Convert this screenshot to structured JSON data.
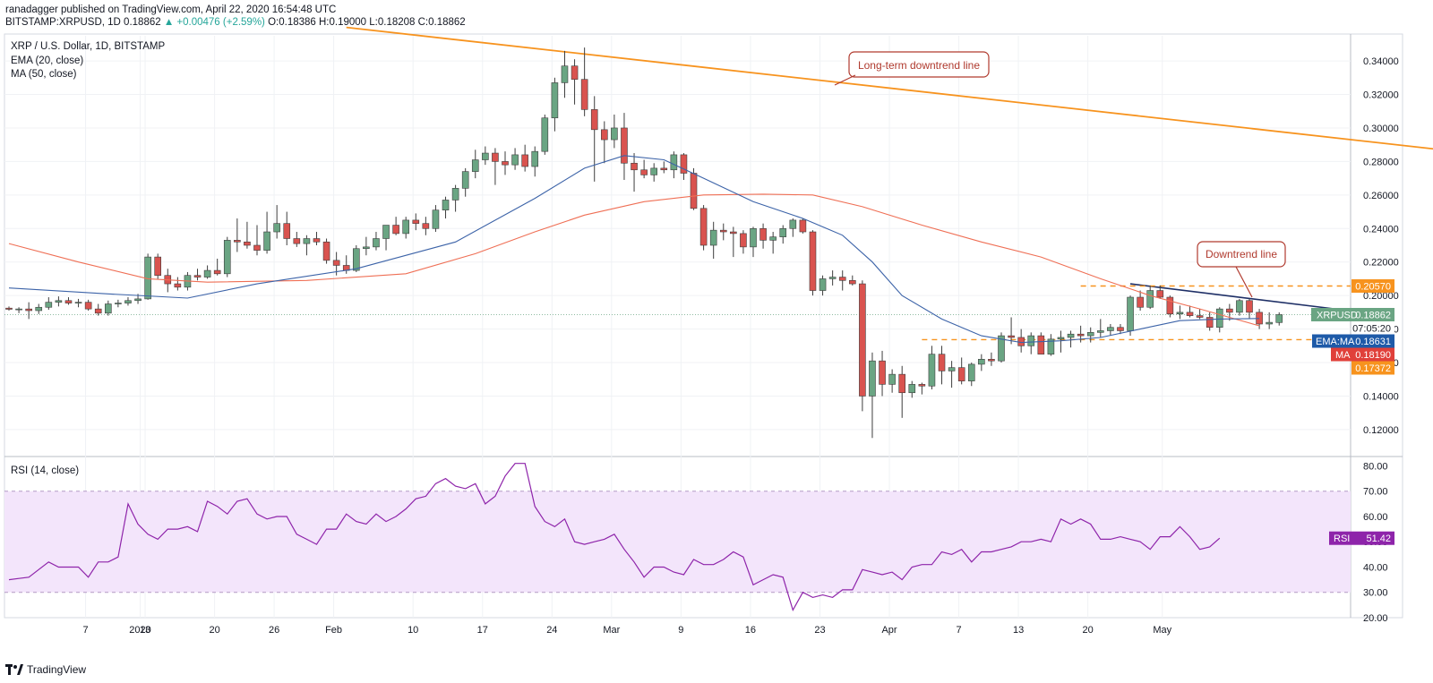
{
  "header": {
    "publish_line": "ranadagger published on TradingView.com, April 22, 2020 16:54:48 UTC",
    "symbol_line_prefix": "BITSTAMP:XRPUSD, 1D 0.18862",
    "symbol_line_change": "▲ +0.00476 (+2.59%)",
    "symbol_line_ohlc": "O:0.18386 H:0.19000 L:0.18208 C:0.18862"
  },
  "legend": {
    "title": "XRP / U.S. Dollar, 1D, BITSTAMP",
    "ema": "EMA (20, close)",
    "ma": "MA (50, close)"
  },
  "rsi_panel": {
    "label": "RSI (14, close)"
  },
  "footer": {
    "brand": "TradingView"
  },
  "colors": {
    "up": "#6aa583",
    "down": "#d9534f",
    "ema": "#3c63a8",
    "ma": "#ef6f55",
    "trend_long": "#f7931e",
    "trend_short": "#1e2f66",
    "rsi": "#8e24aa",
    "rsi_band": "#f3e5fb",
    "annotation": "#b03a2e"
  },
  "chart_data": [
    {
      "type": "candlestick",
      "title": "XRP / U.S. Dollar, 1D, BITSTAMP",
      "ylim": [
        0.105,
        0.355
      ],
      "y_ticks": [
        "0.12000",
        "0.14000",
        "0.16000",
        "0.18000",
        "0.20000",
        "0.22000",
        "0.24000",
        "0.26000",
        "0.28000",
        "0.30000",
        "0.32000",
        "0.34000"
      ],
      "x_ticks": [
        "2020",
        "7",
        "13",
        "20",
        "26",
        "Feb",
        "10",
        "17",
        "24",
        "Mar",
        "9",
        "16",
        "23",
        "Apr",
        "7",
        "13",
        "20",
        "May"
      ],
      "price_labels": {
        "symbol": "XRPUSD",
        "last": "0.18862",
        "countdown": "07:05:20",
        "ema_label": "EMA:MA",
        "ema_value": "0.18631",
        "ma_label": "MA",
        "ma_value": "0.18190",
        "resistance": "0.20570",
        "support": "0.17372"
      },
      "annotations": [
        "Long-term downtrend line",
        "Downtrend line"
      ],
      "candles": [
        [
          0.1925,
          0.1935,
          0.191,
          0.1918
        ],
        [
          0.1918,
          0.193,
          0.1895,
          0.192
        ],
        [
          0.192,
          0.196,
          0.186,
          0.191
        ],
        [
          0.191,
          0.195,
          0.189,
          0.193
        ],
        [
          0.193,
          0.199,
          0.1915,
          0.196
        ],
        [
          0.196,
          0.1995,
          0.1935,
          0.197
        ],
        [
          0.197,
          0.199,
          0.1945,
          0.1955
        ],
        [
          0.1955,
          0.198,
          0.193,
          0.196
        ],
        [
          0.196,
          0.1975,
          0.191,
          0.192
        ],
        [
          0.192,
          0.195,
          0.188,
          0.1895
        ],
        [
          0.1895,
          0.197,
          0.188,
          0.195
        ],
        [
          0.195,
          0.1975,
          0.193,
          0.1955
        ],
        [
          0.1955,
          0.199,
          0.194,
          0.197
        ],
        [
          0.197,
          0.201,
          0.195,
          0.198
        ],
        [
          0.198,
          0.225,
          0.1975,
          0.223
        ],
        [
          0.223,
          0.225,
          0.21,
          0.212
        ],
        [
          0.212,
          0.216,
          0.202,
          0.207
        ],
        [
          0.207,
          0.211,
          0.203,
          0.205
        ],
        [
          0.205,
          0.214,
          0.203,
          0.212
        ],
        [
          0.212,
          0.216,
          0.209,
          0.211
        ],
        [
          0.211,
          0.218,
          0.21,
          0.215
        ],
        [
          0.215,
          0.222,
          0.212,
          0.213
        ],
        [
          0.213,
          0.235,
          0.211,
          0.233
        ],
        [
          0.233,
          0.246,
          0.226,
          0.232
        ],
        [
          0.232,
          0.244,
          0.228,
          0.23
        ],
        [
          0.23,
          0.242,
          0.224,
          0.227
        ],
        [
          0.227,
          0.25,
          0.225,
          0.238
        ],
        [
          0.238,
          0.254,
          0.234,
          0.243
        ],
        [
          0.243,
          0.25,
          0.23,
          0.234
        ],
        [
          0.234,
          0.238,
          0.229,
          0.231
        ],
        [
          0.231,
          0.236,
          0.224,
          0.234
        ],
        [
          0.234,
          0.238,
          0.23,
          0.232
        ],
        [
          0.232,
          0.234,
          0.219,
          0.221
        ],
        [
          0.221,
          0.226,
          0.212,
          0.218
        ],
        [
          0.218,
          0.224,
          0.213,
          0.215
        ],
        [
          0.215,
          0.23,
          0.214,
          0.228
        ],
        [
          0.228,
          0.235,
          0.224,
          0.229
        ],
        [
          0.229,
          0.238,
          0.227,
          0.234
        ],
        [
          0.234,
          0.242,
          0.227,
          0.242
        ],
        [
          0.242,
          0.247,
          0.236,
          0.237
        ],
        [
          0.237,
          0.247,
          0.234,
          0.245
        ],
        [
          0.245,
          0.249,
          0.239,
          0.243
        ],
        [
          0.243,
          0.247,
          0.236,
          0.24
        ],
        [
          0.24,
          0.254,
          0.238,
          0.251
        ],
        [
          0.251,
          0.259,
          0.246,
          0.257
        ],
        [
          0.257,
          0.266,
          0.25,
          0.264
        ],
        [
          0.264,
          0.276,
          0.259,
          0.274
        ],
        [
          0.274,
          0.287,
          0.27,
          0.281
        ],
        [
          0.281,
          0.289,
          0.278,
          0.285
        ],
        [
          0.285,
          0.288,
          0.266,
          0.28
        ],
        [
          0.28,
          0.286,
          0.272,
          0.278
        ],
        [
          0.278,
          0.288,
          0.275,
          0.284
        ],
        [
          0.284,
          0.29,
          0.274,
          0.277
        ],
        [
          0.277,
          0.289,
          0.271,
          0.286
        ],
        [
          0.286,
          0.308,
          0.284,
          0.306
        ],
        [
          0.306,
          0.33,
          0.298,
          0.327
        ],
        [
          0.327,
          0.346,
          0.318,
          0.337
        ],
        [
          0.337,
          0.341,
          0.314,
          0.329
        ],
        [
          0.329,
          0.348,
          0.307,
          0.311
        ],
        [
          0.311,
          0.319,
          0.268,
          0.299
        ],
        [
          0.299,
          0.304,
          0.279,
          0.293
        ],
        [
          0.293,
          0.308,
          0.288,
          0.3
        ],
        [
          0.3,
          0.309,
          0.269,
          0.279
        ],
        [
          0.279,
          0.285,
          0.262,
          0.275
        ],
        [
          0.275,
          0.281,
          0.27,
          0.272
        ],
        [
          0.272,
          0.279,
          0.268,
          0.276
        ],
        [
          0.276,
          0.28,
          0.273,
          0.275
        ],
        [
          0.275,
          0.286,
          0.27,
          0.284
        ],
        [
          0.284,
          0.285,
          0.269,
          0.273
        ],
        [
          0.273,
          0.276,
          0.251,
          0.252
        ],
        [
          0.252,
          0.254,
          0.227,
          0.23
        ],
        [
          0.23,
          0.244,
          0.222,
          0.239
        ],
        [
          0.239,
          0.243,
          0.233,
          0.238
        ],
        [
          0.238,
          0.241,
          0.223,
          0.237
        ],
        [
          0.237,
          0.239,
          0.225,
          0.229
        ],
        [
          0.229,
          0.241,
          0.223,
          0.24
        ],
        [
          0.24,
          0.243,
          0.228,
          0.233
        ],
        [
          0.233,
          0.238,
          0.225,
          0.235
        ],
        [
          0.235,
          0.242,
          0.231,
          0.24
        ],
        [
          0.24,
          0.246,
          0.235,
          0.245
        ],
        [
          0.245,
          0.246,
          0.237,
          0.238
        ],
        [
          0.238,
          0.239,
          0.2,
          0.203
        ],
        [
          0.203,
          0.212,
          0.2,
          0.21
        ],
        [
          0.21,
          0.215,
          0.206,
          0.211
        ],
        [
          0.211,
          0.215,
          0.203,
          0.209
        ],
        [
          0.209,
          0.212,
          0.206,
          0.207
        ],
        [
          0.207,
          0.209,
          0.131,
          0.14
        ],
        [
          0.14,
          0.166,
          0.115,
          0.161
        ],
        [
          0.161,
          0.167,
          0.14,
          0.147
        ],
        [
          0.147,
          0.156,
          0.142,
          0.153
        ],
        [
          0.153,
          0.158,
          0.127,
          0.142
        ],
        [
          0.142,
          0.149,
          0.139,
          0.147
        ],
        [
          0.147,
          0.148,
          0.141,
          0.146
        ],
        [
          0.146,
          0.17,
          0.144,
          0.165
        ],
        [
          0.165,
          0.17,
          0.147,
          0.155
        ],
        [
          0.155,
          0.161,
          0.145,
          0.157
        ],
        [
          0.157,
          0.163,
          0.147,
          0.149
        ],
        [
          0.149,
          0.16,
          0.146,
          0.159
        ],
        [
          0.159,
          0.165,
          0.155,
          0.162
        ],
        [
          0.162,
          0.166,
          0.158,
          0.161
        ],
        [
          0.161,
          0.178,
          0.16,
          0.176
        ],
        [
          0.176,
          0.187,
          0.171,
          0.175
        ],
        [
          0.175,
          0.18,
          0.166,
          0.17
        ],
        [
          0.17,
          0.178,
          0.165,
          0.176
        ],
        [
          0.176,
          0.178,
          0.165,
          0.165
        ],
        [
          0.165,
          0.177,
          0.164,
          0.174
        ],
        [
          0.174,
          0.179,
          0.166,
          0.175
        ],
        [
          0.175,
          0.179,
          0.169,
          0.177
        ],
        [
          0.177,
          0.182,
          0.172,
          0.176
        ],
        [
          0.176,
          0.181,
          0.172,
          0.178
        ],
        [
          0.178,
          0.186,
          0.175,
          0.179
        ],
        [
          0.179,
          0.183,
          0.176,
          0.181
        ],
        [
          0.181,
          0.183,
          0.177,
          0.179
        ],
        [
          0.179,
          0.2,
          0.176,
          0.199
        ],
        [
          0.199,
          0.203,
          0.191,
          0.193
        ],
        [
          0.193,
          0.206,
          0.192,
          0.203
        ],
        [
          0.203,
          0.206,
          0.198,
          0.199
        ],
        [
          0.199,
          0.2,
          0.187,
          0.189
        ],
        [
          0.189,
          0.194,
          0.186,
          0.19
        ],
        [
          0.19,
          0.194,
          0.187,
          0.188
        ],
        [
          0.188,
          0.192,
          0.186,
          0.187
        ],
        [
          0.187,
          0.19,
          0.179,
          0.181
        ],
        [
          0.181,
          0.193,
          0.178,
          0.192
        ],
        [
          0.192,
          0.195,
          0.185,
          0.19
        ],
        [
          0.19,
          0.198,
          0.188,
          0.197
        ],
        [
          0.197,
          0.198,
          0.186,
          0.19
        ],
        [
          0.19,
          0.192,
          0.18,
          0.183
        ],
        [
          0.183,
          0.19,
          0.18,
          0.184
        ],
        [
          0.1839,
          0.19,
          0.1821,
          0.1886
        ]
      ],
      "ema20": [
        [
          0,
          0.2045
        ],
        [
          10,
          0.201
        ],
        [
          18,
          0.1985
        ],
        [
          25,
          0.207
        ],
        [
          35,
          0.216
        ],
        [
          45,
          0.232
        ],
        [
          53,
          0.258
        ],
        [
          58,
          0.276
        ],
        [
          62,
          0.2835
        ],
        [
          66,
          0.281
        ],
        [
          70,
          0.27
        ],
        [
          75,
          0.256
        ],
        [
          80,
          0.246
        ],
        [
          84,
          0.236
        ],
        [
          87,
          0.22
        ],
        [
          90,
          0.2
        ],
        [
          94,
          0.186
        ],
        [
          98,
          0.176
        ],
        [
          102,
          0.172
        ],
        [
          106,
          0.173
        ],
        [
          110,
          0.175
        ],
        [
          114,
          0.18
        ],
        [
          118,
          0.185
        ],
        [
          122,
          0.186
        ],
        [
          126,
          0.1863
        ]
      ],
      "ma50": [
        [
          0,
          0.231
        ],
        [
          7,
          0.22
        ],
        [
          14,
          0.21
        ],
        [
          20,
          0.208
        ],
        [
          30,
          0.209
        ],
        [
          40,
          0.213
        ],
        [
          47,
          0.225
        ],
        [
          53,
          0.238
        ],
        [
          58,
          0.248
        ],
        [
          64,
          0.256
        ],
        [
          70,
          0.26
        ],
        [
          76,
          0.2605
        ],
        [
          81,
          0.26
        ],
        [
          86,
          0.253
        ],
        [
          92,
          0.242
        ],
        [
          98,
          0.232
        ],
        [
          104,
          0.223
        ],
        [
          110,
          0.21
        ],
        [
          115,
          0.2
        ],
        [
          120,
          0.192
        ],
        [
          126,
          0.1819
        ]
      ],
      "long_trend_line": [
        [
          34,
          0.36
        ],
        [
          148,
          0.284
        ]
      ],
      "short_trend_line": [
        [
          113,
          0.207
        ],
        [
          135,
          0.191
        ]
      ],
      "resistance_level": 0.2057,
      "support_level": 0.1737
    },
    {
      "type": "line",
      "title": "RSI (14, close)",
      "ylim": [
        20,
        83
      ],
      "y_ticks": [
        "20.00",
        "30.00",
        "40.00",
        "50.00",
        "60.00",
        "70.00",
        "80.00"
      ],
      "band": [
        30,
        70
      ],
      "last_label": "RSI",
      "last_value": "51.42",
      "values": [
        35,
        35.5,
        36,
        39,
        42,
        40,
        40,
        40,
        36,
        42,
        42,
        44,
        65,
        57,
        53,
        51,
        55,
        55,
        56,
        54,
        66,
        64,
        61,
        66,
        67,
        61,
        59,
        60,
        60,
        53,
        51,
        49,
        55,
        55,
        61,
        58,
        57,
        61,
        58,
        60,
        63,
        67,
        68,
        73,
        75,
        72,
        71,
        73,
        65,
        68,
        76,
        81,
        81,
        64,
        58,
        56,
        59,
        50,
        49,
        50,
        51,
        53,
        47,
        42,
        36,
        40,
        40,
        38,
        37,
        43,
        41,
        41,
        43,
        46,
        44,
        33,
        35,
        37,
        36,
        23,
        30,
        28,
        29,
        28,
        31,
        31,
        39,
        38,
        37,
        38,
        35,
        40,
        41,
        41,
        46,
        45,
        47,
        42,
        46,
        46,
        47,
        48,
        50,
        50,
        51,
        50,
        59,
        57,
        59,
        57,
        51,
        51,
        52,
        51,
        50,
        47,
        52,
        52,
        56,
        52,
        47,
        48,
        51.42
      ]
    }
  ]
}
